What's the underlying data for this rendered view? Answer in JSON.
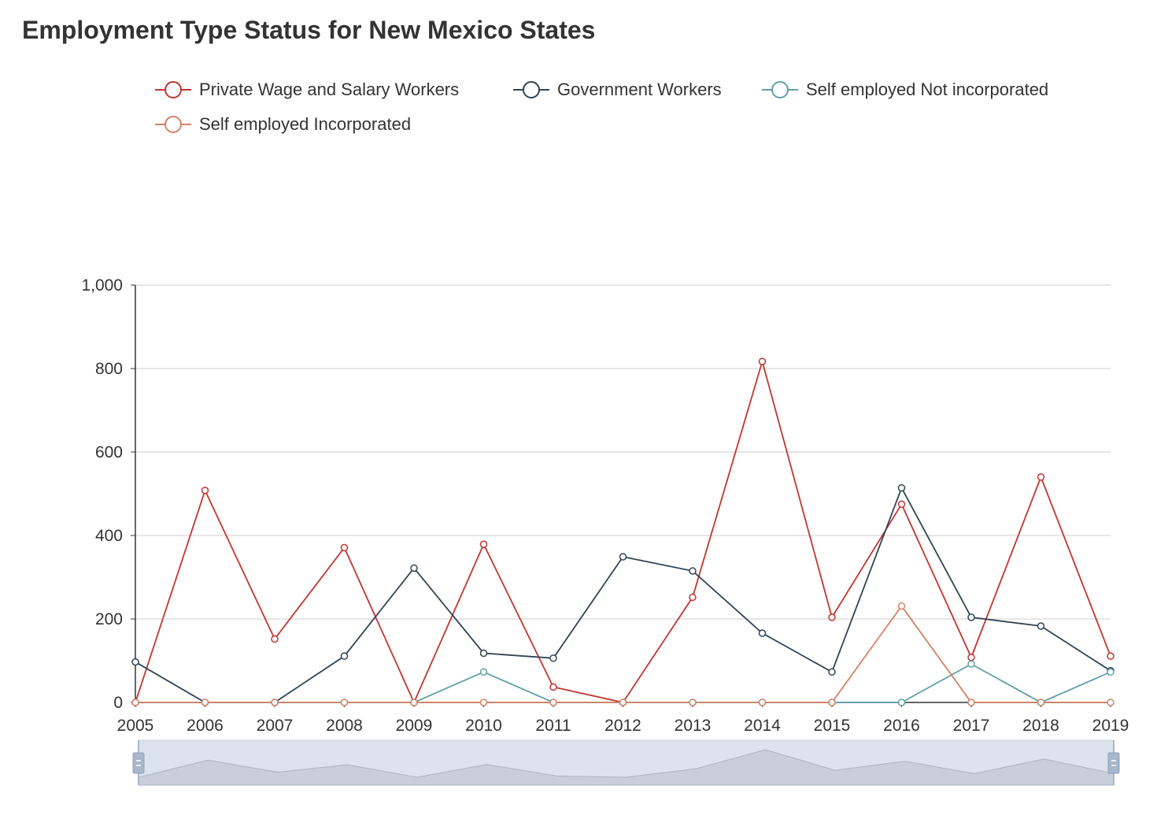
{
  "title": "Employment Type Status for New Mexico States",
  "legend": {
    "items": [
      {
        "label": "Private Wage and Salary Workers",
        "color": "#c23531"
      },
      {
        "label": "Government Workers",
        "color": "#2f4554"
      },
      {
        "label": "Self employed Not incorporated",
        "color": "#61a0a8"
      },
      {
        "label": "Self employed Incorporated",
        "color": "#d48265"
      }
    ]
  },
  "chart_data": {
    "type": "line",
    "x": [
      "2005",
      "2006",
      "2007",
      "2008",
      "2009",
      "2010",
      "2011",
      "2012",
      "2013",
      "2014",
      "2015",
      "2016",
      "2017",
      "2018",
      "2019"
    ],
    "ylim": [
      0,
      1000
    ],
    "yticks": [
      0,
      200,
      400,
      600,
      800,
      1000
    ],
    "ytick_labels": [
      "0",
      "200",
      "400",
      "600",
      "800",
      "1,000"
    ],
    "grid": true,
    "legend_position": "top",
    "series": [
      {
        "name": "Private Wage and Salary Workers",
        "color": "#c23531",
        "values": [
          0,
          508,
          152,
          371,
          0,
          379,
          37,
          0,
          252,
          817,
          204,
          475,
          108,
          540,
          111
        ]
      },
      {
        "name": "Government Workers",
        "color": "#2f4554",
        "values": [
          97,
          0,
          0,
          111,
          322,
          118,
          106,
          349,
          315,
          166,
          73,
          514,
          204,
          183,
          76
        ]
      },
      {
        "name": "Self employed Not incorporated",
        "color": "#61a0a8",
        "values": [
          0,
          0,
          0,
          0,
          0,
          73,
          0,
          0,
          0,
          0,
          0,
          0,
          92,
          0,
          73
        ]
      },
      {
        "name": "Self employed Incorporated",
        "color": "#d48265",
        "values": [
          0,
          0,
          0,
          0,
          0,
          0,
          0,
          0,
          0,
          0,
          0,
          231,
          0,
          0,
          0
        ]
      }
    ],
    "data_zoom": {
      "start": "2005",
      "end": "2019"
    }
  }
}
